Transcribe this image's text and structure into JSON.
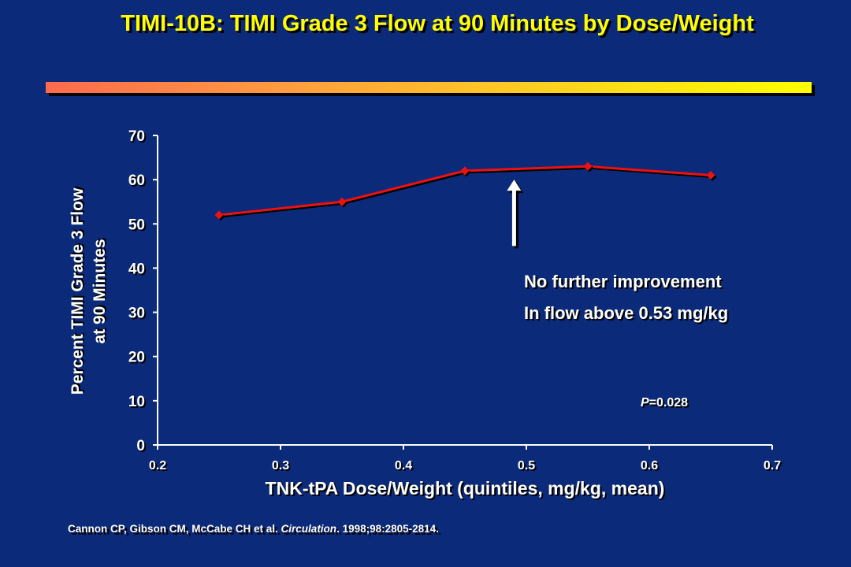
{
  "slide": {
    "title": "TIMI-10B: TIMI Grade 3 Flow at 90 Minutes by Dose/Weight"
  },
  "chart_data": {
    "type": "line",
    "xlabel": "TNK-tPA Dose/Weight (quintiles, mg/kg, mean)",
    "ylabel_lines": [
      "Percent TIMI Grade 3 Flow",
      "at 90 Minutes"
    ],
    "xlim": [
      0.2,
      0.7
    ],
    "ylim": [
      0,
      70
    ],
    "x_ticks": [
      "0.2",
      "0.3",
      "0.4",
      "0.5",
      "0.6",
      "0.7"
    ],
    "y_ticks": [
      "0",
      "10",
      "20",
      "30",
      "40",
      "50",
      "60",
      "70"
    ],
    "grid": false,
    "series": [
      {
        "x": [
          0.25,
          0.35,
          0.45,
          0.55,
          0.65
        ],
        "y": [
          52,
          55,
          62,
          63,
          61
        ],
        "color": "#ee1111"
      }
    ],
    "annotations": {
      "note_lines": [
        "No further improvement",
        "In flow above 0.53 mg/kg"
      ],
      "p_value_label": "P",
      "p_value_text": "=0.028",
      "arrow_x": 0.49,
      "arrow_head_y": 60,
      "arrow_tail_y": 45
    }
  },
  "citation": {
    "authors": "Cannon CP, Gibson CM, McCabe CH et al. ",
    "journal": "Circulation",
    "details": ". 1998;98:2805-2814."
  }
}
